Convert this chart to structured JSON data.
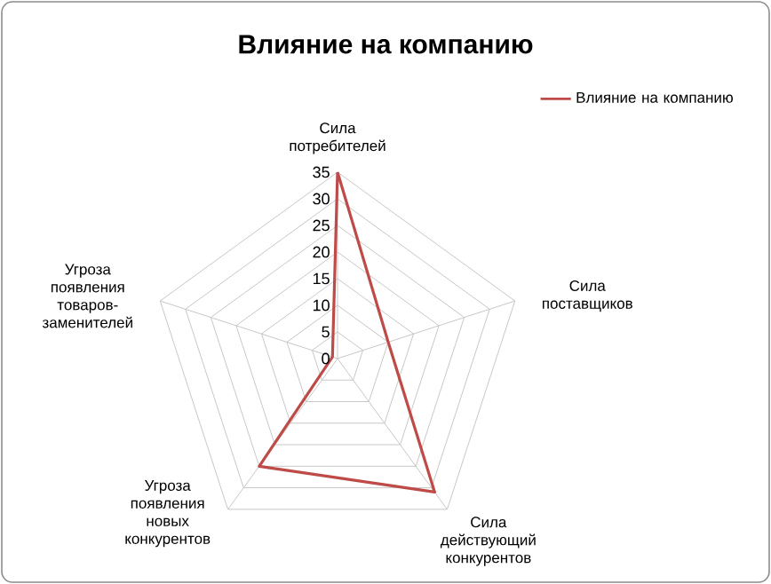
{
  "chart_data": {
    "type": "radar",
    "title": "Влияние на компанию",
    "categories": [
      "Сила потребителей",
      "Сила поставщиков",
      "Сила действующий конкурентов",
      "Угроза появления новых конкурентов",
      "Угроза появления товаров-заменителей"
    ],
    "series": [
      {
        "name": "Влияние на компанию",
        "color": "#be4b48",
        "values": [
          35,
          10,
          31,
          25,
          1
        ]
      }
    ],
    "ylim": [
      0,
      35
    ],
    "yticks": [
      0,
      5,
      10,
      15,
      20,
      25,
      30,
      35
    ],
    "grid": true,
    "legend": "top right"
  }
}
